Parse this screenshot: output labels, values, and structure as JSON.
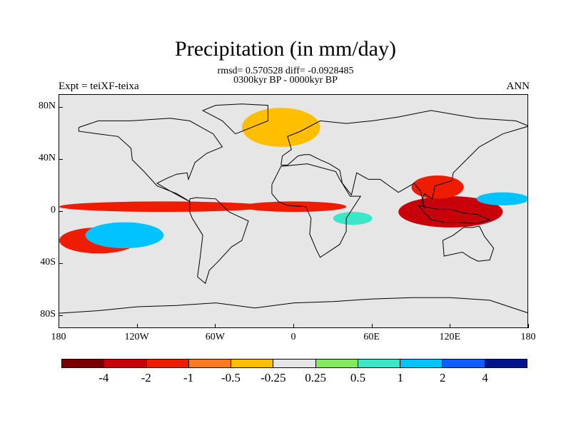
{
  "title": "Precipitation (in mm/day)",
  "stats_line": "rmsd= 0.570528 diff= -0.0928485",
  "subtitle": "0300kyr BP - 0000kyr BP",
  "left_string": "Expt = teiXF-teixa",
  "right_string": "ANN",
  "y_ticks": [
    "80N",
    "40N",
    "0",
    "40S",
    "80S"
  ],
  "x_ticks": [
    "180",
    "120W",
    "60W",
    "0",
    "60E",
    "120E",
    "180"
  ],
  "colorbar": {
    "colors": [
      "#7a0000",
      "#c8000a",
      "#ee1c00",
      "#ff7a1f",
      "#ffbe00",
      "#e6e6e6",
      "#85e85f",
      "#3ce6c8",
      "#00c3ff",
      "#0f5cff",
      "#00148c"
    ],
    "labels": [
      "-4",
      "-2",
      "-1",
      "-0.5",
      "-0.25",
      "0.25",
      "0.5",
      "1",
      "2",
      "4"
    ]
  },
  "chart_data": {
    "type": "heatmap",
    "title": "Precipitation (in mm/day)",
    "units": "mm/day",
    "projection": "cylindrical equidistant",
    "lon_range": [
      -180,
      180
    ],
    "lat_range": [
      -90,
      90
    ],
    "levels": [
      -4,
      -2,
      -1,
      -0.5,
      -0.25,
      0.25,
      0.5,
      1,
      2,
      4
    ],
    "rmsd": 0.570528,
    "diff": -0.0928485,
    "season": "ANN",
    "regions": [
      {
        "lon": [
          -180,
          -20
        ],
        "lat": [
          0,
          8
        ],
        "value": -1.5
      },
      {
        "lon": [
          -40,
          40
        ],
        "lat": [
          0,
          8
        ],
        "value": -1.2
      },
      {
        "lon": [
          80,
          160
        ],
        "lat": [
          -12,
          12
        ],
        "value": -3
      },
      {
        "lon": [
          90,
          130
        ],
        "lat": [
          10,
          28
        ],
        "value": -1.5
      },
      {
        "lon": [
          -180,
          -120
        ],
        "lat": [
          -32,
          -12
        ],
        "value": -1.2
      },
      {
        "lon": [
          -160,
          -100
        ],
        "lat": [
          -28,
          -8
        ],
        "value": 2
      },
      {
        "lon": [
          -40,
          20
        ],
        "lat": [
          50,
          80
        ],
        "value": -0.4
      },
      {
        "lon": [
          140,
          180
        ],
        "lat": [
          5,
          15
        ],
        "value": 1.5
      },
      {
        "lon": [
          30,
          60
        ],
        "lat": [
          -10,
          0
        ],
        "value": 0.6
      }
    ]
  }
}
